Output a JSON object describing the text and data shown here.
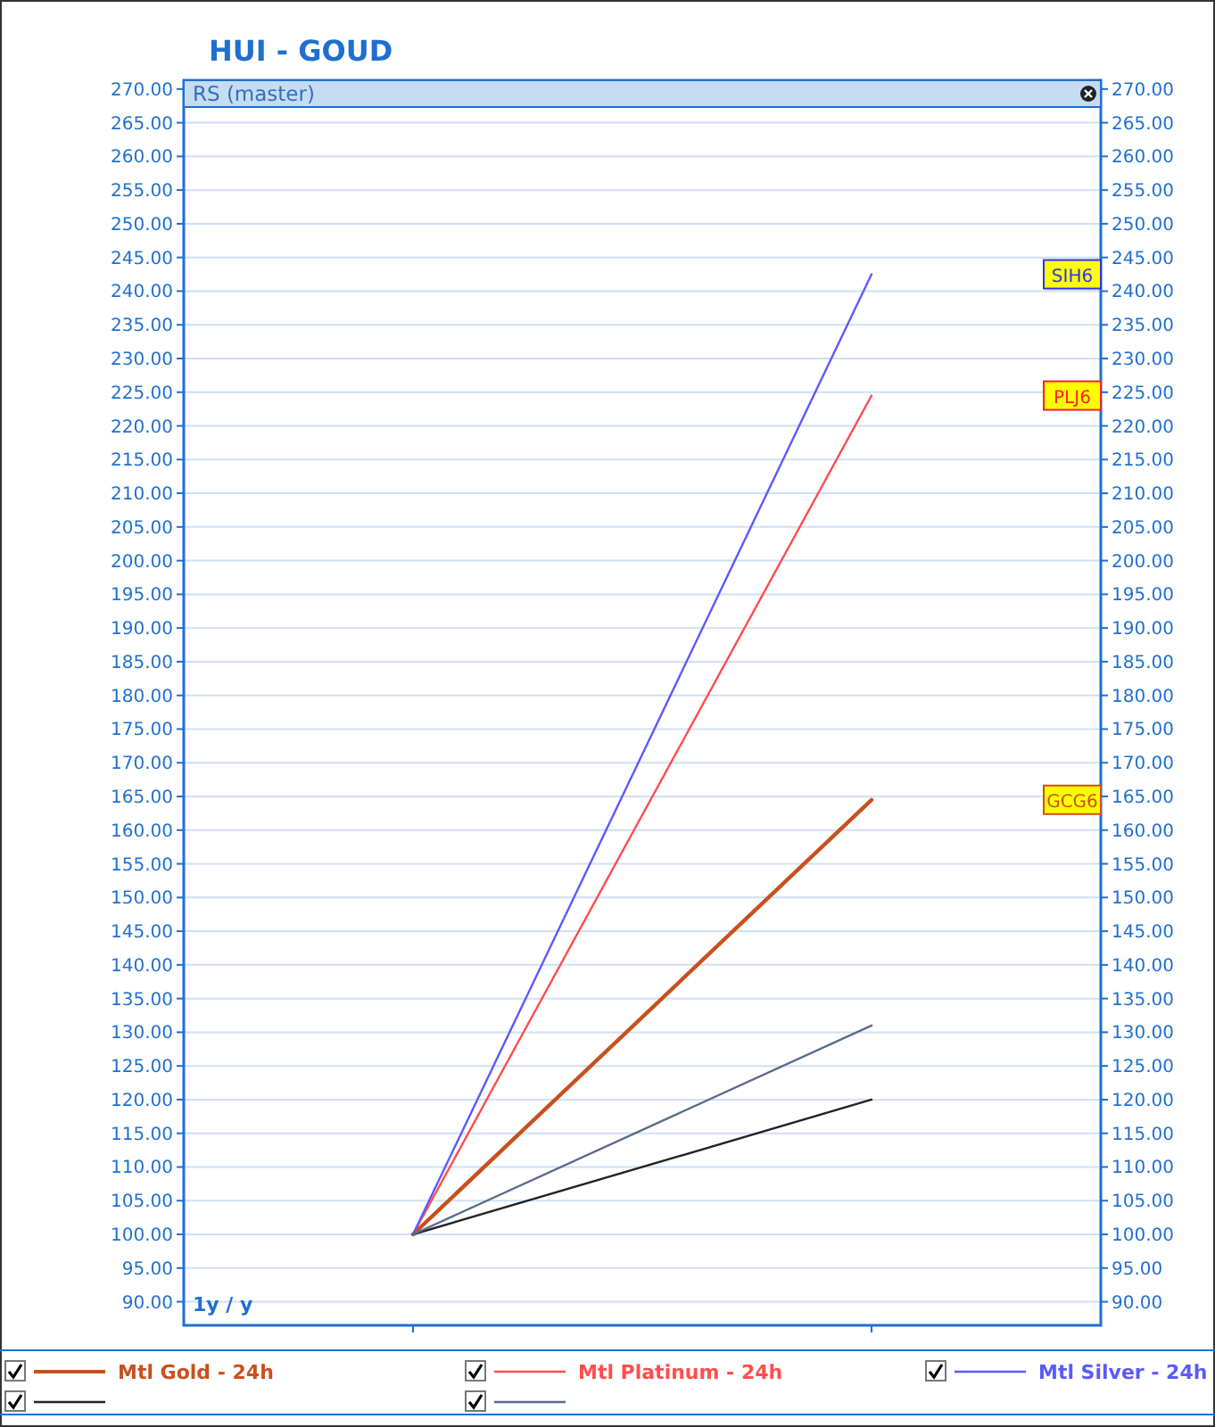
{
  "chart_data": {
    "type": "line",
    "title": "HUI - GOUD",
    "subtitle": "RS (master)",
    "categories": [
      null,
      null
    ],
    "series": [
      {
        "name": "Mtl Gold - 24h",
        "color": "#c8501e",
        "values": [
          100,
          164.5
        ]
      },
      {
        "name": "Mtl Platinum - 24h",
        "color": "#ff4d4d",
        "values": [
          100,
          224.5
        ]
      },
      {
        "name": "Mtl Silver - 24h",
        "color": "#5a5aff",
        "values": [
          100,
          242.5
        ]
      },
      {
        "color": "#222222",
        "values": [
          100,
          120
        ]
      },
      {
        "color": "#5c6a8c",
        "values": [
          100,
          131
        ]
      }
    ],
    "annotations": [
      {
        "text": "SIH6",
        "y": 242.5
      },
      {
        "text": "PLJ6",
        "y": 224.5
      },
      {
        "text": "GCG6",
        "y": 164.5
      },
      "1y / y"
    ],
    "ylim": [
      86.5,
      271.3
    ],
    "yticks": [
      {
        "value": 90,
        "label": "90.00"
      },
      {
        "value": 95,
        "label": "95.00"
      },
      {
        "value": 100,
        "label": "100.00"
      },
      {
        "value": 105,
        "label": "105.00"
      },
      {
        "value": 110,
        "label": "110.00"
      },
      {
        "value": 115,
        "label": "115.00"
      },
      {
        "value": 120,
        "label": "120.00"
      },
      {
        "value": 125,
        "label": "125.00"
      },
      {
        "value": 130,
        "label": "130.00"
      },
      {
        "value": 135,
        "label": "135.00"
      },
      {
        "value": 140,
        "label": "140.00"
      },
      {
        "value": 145,
        "label": "145.00"
      },
      {
        "value": 150,
        "label": "150.00"
      },
      {
        "value": 155,
        "label": "155.00"
      },
      {
        "value": 160,
        "label": "160.00"
      },
      {
        "value": 165,
        "label": "165.00"
      },
      {
        "value": 170,
        "label": "170.00"
      },
      {
        "value": 175,
        "label": "175.00"
      },
      {
        "value": 180,
        "label": "180.00"
      },
      {
        "value": 185,
        "label": "185.00"
      },
      {
        "value": 190,
        "label": "190.00"
      },
      {
        "value": 195,
        "label": "195.00"
      },
      {
        "value": 200,
        "label": "200.00"
      },
      {
        "value": 205,
        "label": "205.00"
      },
      {
        "value": 210,
        "label": "210.00"
      },
      {
        "value": 215,
        "label": "215.00"
      },
      {
        "value": 220,
        "label": "220.00"
      },
      {
        "value": 225,
        "label": "225.00"
      },
      {
        "value": 230,
        "label": "230.00"
      },
      {
        "value": 235,
        "label": "235.00"
      },
      {
        "value": 240,
        "label": "240.00"
      },
      {
        "value": 245,
        "label": "245.00"
      },
      {
        "value": 250,
        "label": "250.00"
      },
      {
        "value": 255,
        "label": "255.00"
      },
      {
        "value": 260,
        "label": "260.00"
      },
      {
        "value": 265,
        "label": "265.00"
      },
      {
        "value": 270,
        "label": "270.00"
      }
    ],
    "y2lim": [
      86.5,
      271.3
    ],
    "y2ticks": [
      {
        "value": 90,
        "label": "90.00"
      },
      {
        "value": 95,
        "label": "95.00"
      },
      {
        "value": 100,
        "label": "100.00"
      },
      {
        "value": 105,
        "label": "105.00"
      },
      {
        "value": 110,
        "label": "110.00"
      },
      {
        "value": 115,
        "label": "115.00"
      },
      {
        "value": 120,
        "label": "120.00"
      },
      {
        "value": 125,
        "label": "125.00"
      },
      {
        "value": 130,
        "label": "130.00"
      },
      {
        "value": 135,
        "label": "135.00"
      },
      {
        "value": 140,
        "label": "140.00"
      },
      {
        "value": 145,
        "label": "145.00"
      },
      {
        "value": 150,
        "label": "150.00"
      },
      {
        "value": 155,
        "label": "155.00"
      },
      {
        "value": 160,
        "label": "160.00"
      },
      {
        "value": 165,
        "label": "165.00"
      },
      {
        "value": 170,
        "label": "170.00"
      },
      {
        "value": 175,
        "label": "175.00"
      },
      {
        "value": 180,
        "label": "180.00"
      },
      {
        "value": 185,
        "label": "185.00"
      },
      {
        "value": 190,
        "label": "190.00"
      },
      {
        "value": 195,
        "label": "195.00"
      },
      {
        "value": 200,
        "label": "200.00"
      },
      {
        "value": 205,
        "label": "205.00"
      },
      {
        "value": 210,
        "label": "210.00"
      },
      {
        "value": 215,
        "label": "215.00"
      },
      {
        "value": 220,
        "label": "220.00"
      },
      {
        "value": 225,
        "label": "225.00"
      },
      {
        "value": 230,
        "label": "230.00"
      },
      {
        "value": 235,
        "label": "235.00"
      },
      {
        "value": 240,
        "label": "240.00"
      },
      {
        "value": 245,
        "label": "245.00"
      },
      {
        "value": 250,
        "label": "250.00"
      },
      {
        "value": 255,
        "label": "255.00"
      },
      {
        "value": 260,
        "label": "260.00"
      },
      {
        "value": 265,
        "label": "265.00"
      },
      {
        "value": 270,
        "label": "270.00"
      }
    ],
    "grid": "y",
    "legend": "bottom",
    "marker": "none",
    "line_style": "solid"
  }
}
